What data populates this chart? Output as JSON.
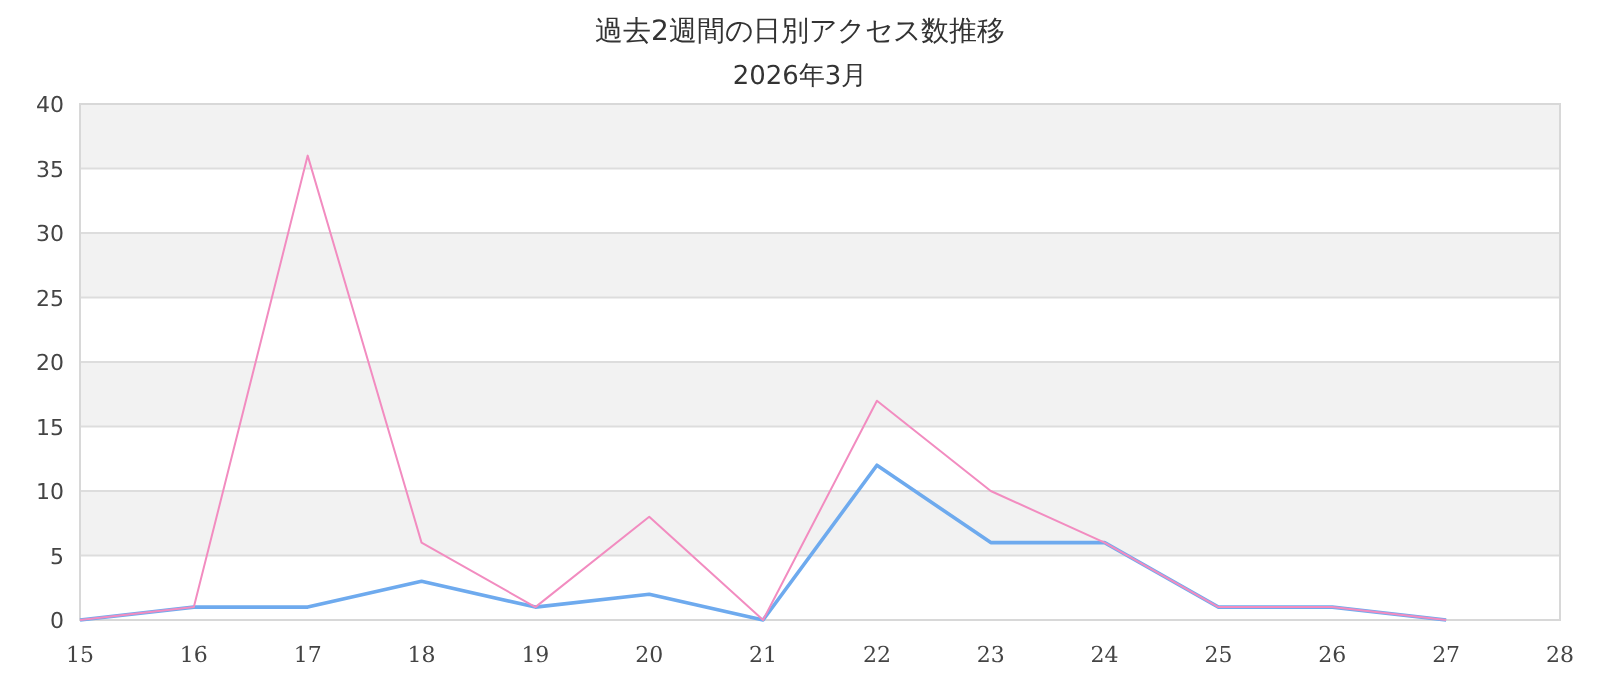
{
  "chart_data": {
    "type": "line",
    "title": "過去2週間の日別アクセス数推移",
    "subtitle": "2026年3月",
    "x": [
      15,
      16,
      17,
      18,
      19,
      20,
      21,
      22,
      23,
      24,
      25,
      26,
      27
    ],
    "series": [
      {
        "color": "#6eaaee",
        "values": [
          0,
          1,
          1,
          3,
          1,
          2,
          0,
          12,
          6,
          6,
          1,
          1,
          0
        ]
      },
      {
        "color": "#f28cc0",
        "values": [
          0,
          1,
          36,
          6,
          1,
          8,
          0,
          17,
          10,
          6,
          1,
          1,
          0
        ]
      }
    ],
    "xlim": [
      15,
      28
    ],
    "xticks": [
      15,
      16,
      17,
      18,
      19,
      20,
      21,
      22,
      23,
      24,
      25,
      26,
      27,
      28
    ],
    "ylim": [
      0,
      40
    ],
    "yticks": [
      0,
      5,
      10,
      15,
      20,
      25,
      30,
      35,
      40
    ],
    "grid": "y",
    "marker": "none",
    "line_style": "solid",
    "bands": [
      {
        "axis": "y",
        "from": 5,
        "to": 10,
        "color": "#f2f2f2"
      },
      {
        "axis": "y",
        "from": 15,
        "to": 20,
        "color": "#f2f2f2"
      },
      {
        "axis": "y",
        "from": 25,
        "to": 30,
        "color": "#f2f2f2"
      },
      {
        "axis": "y",
        "from": 35,
        "to": 40,
        "color": "#f2f2f2"
      }
    ]
  }
}
